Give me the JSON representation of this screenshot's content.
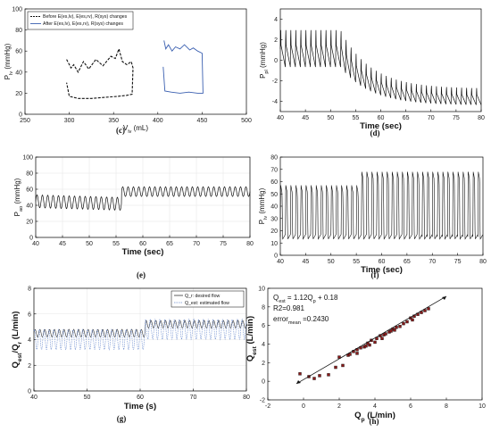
{
  "chart_data": [
    {
      "id": "c",
      "type": "line",
      "caption": "(c)",
      "xlabel": "V",
      "xlabel_sub": "lv",
      "xlabel_unit": " (mL)",
      "ylabel": "P",
      "ylabel_sub": "lv",
      "ylabel_unit": " (mmHg)",
      "xlim": [
        250,
        500
      ],
      "ylim": [
        0,
        100
      ],
      "xticks": [
        250,
        300,
        350,
        400,
        450,
        500
      ],
      "yticks": [
        0,
        20,
        40,
        60,
        80,
        100
      ],
      "legend": [
        "Before E(es,lv), E(es,rv), R(sys) changes",
        "After E(es,lv), E(es,rv), R(sys) changes"
      ],
      "series": [
        {
          "name": "Before E(es,lv), E(es,rv), R(sys) changes",
          "color": "#111111",
          "dash": true,
          "x": [
            297,
            302,
            305,
            310,
            316,
            322,
            330,
            338,
            347,
            352,
            356,
            360,
            365,
            370,
            372,
            371,
            365,
            355,
            340,
            325,
            310,
            300,
            297
          ],
          "y": [
            52,
            44,
            47,
            40,
            50,
            43,
            52,
            46,
            55,
            53,
            62,
            50,
            47,
            50,
            44,
            19,
            18,
            17,
            16,
            15,
            15,
            17,
            30
          ]
        },
        {
          "name": "After E(es,lv), E(es,rv), R(sys) changes",
          "color": "#3a5fb0",
          "dash": false,
          "x": [
            407,
            409,
            412,
            416,
            420,
            425,
            430,
            436,
            440,
            445,
            450,
            451,
            445,
            435,
            425,
            415,
            408,
            406
          ],
          "y": [
            70,
            62,
            66,
            60,
            64,
            62,
            66,
            61,
            63,
            60,
            58,
            20,
            20,
            21,
            20,
            21,
            22,
            45
          ],
          "fill": true
        }
      ]
    },
    {
      "id": "d",
      "type": "line",
      "caption": "(d)",
      "xlabel": "Time (sec)",
      "ylabel": "P",
      "ylabel_sub": "pl",
      "ylabel_unit": " (mmHg)",
      "xlim": [
        40,
        80
      ],
      "ylim": [
        -5,
        5
      ],
      "xticks": [
        40,
        45,
        50,
        55,
        60,
        65,
        70,
        75,
        80
      ],
      "yticks": [
        -4,
        -2,
        0,
        2,
        4
      ],
      "signal": {
        "start": 40,
        "end": 80,
        "period": 1.0,
        "mean_start": 1.1,
        "mean_end": -3.6,
        "transition": [
          52,
          80
        ],
        "swing": 2.2
      }
    },
    {
      "id": "e",
      "type": "line",
      "caption": "(e)",
      "xlabel": "Time (sec)",
      "ylabel": "P",
      "ylabel_sub": "ao",
      "ylabel_unit": " (mmHg)",
      "xlim": [
        40,
        80
      ],
      "ylim": [
        0,
        100
      ],
      "xticks": [
        40,
        45,
        50,
        55,
        60,
        65,
        70,
        75,
        80
      ],
      "yticks": [
        0,
        20,
        40,
        60,
        80,
        100
      ],
      "signal": {
        "start": 40,
        "end": 80,
        "period": 1.0,
        "mean_before": 45,
        "mean_after": 57,
        "step_at": 56,
        "amp_before": 8,
        "amp_after": 6
      }
    },
    {
      "id": "f",
      "type": "line",
      "caption": "(f)",
      "xlabel": "Time (sec)",
      "ylabel": "P",
      "ylabel_sub": "lv",
      "ylabel_unit": " (mmHg)",
      "xlim": [
        40,
        80
      ],
      "ylim": [
        0,
        80
      ],
      "xticks": [
        40,
        45,
        50,
        55,
        60,
        65,
        70,
        75,
        80
      ],
      "yticks": [
        0,
        10,
        20,
        30,
        40,
        50,
        60,
        70,
        80
      ],
      "signal": {
        "start": 40,
        "end": 80,
        "period": 1.0,
        "min": 15,
        "max_before": 57,
        "max_after": 68,
        "step_at": 56
      }
    },
    {
      "id": "g",
      "type": "line",
      "caption": "(g)",
      "xlabel": "Time (s)",
      "ylabel": "Q",
      "ylabel_parts": [
        "Q",
        "est",
        "/Q",
        "r",
        " (L/min)"
      ],
      "xlim": [
        40,
        80
      ],
      "ylim": [
        0,
        8
      ],
      "xticks": [
        40,
        50,
        60,
        70,
        80
      ],
      "yticks": [
        0,
        2,
        4,
        6,
        8
      ],
      "legend": [
        "Q_r: desired flow",
        "Q_est: estimated flow"
      ],
      "series": [
        {
          "name": "Q_r: desired flow",
          "color": "#333333",
          "mean_before": 4.5,
          "mean_after": 5.2,
          "amp": 0.3,
          "step_at": 61
        },
        {
          "name": "Q_est: estimated flow",
          "color": "#6f8fd0",
          "mean_before": 4.0,
          "mean_after": 4.8,
          "amp": 0.8,
          "step_at": 61
        }
      ]
    },
    {
      "id": "h",
      "type": "scatter",
      "caption": "(h)",
      "xlabel": "Q",
      "xlabel_sub": "p",
      "xlabel_unit": " (L/min)",
      "ylabel": "Q",
      "ylabel_sub": "est",
      "ylabel_unit": " (L/min)",
      "xlim": [
        -2,
        10
      ],
      "ylim": [
        -2,
        10
      ],
      "xticks": [
        -2,
        0,
        2,
        4,
        6,
        8,
        10
      ],
      "yticks": [
        -2,
        0,
        2,
        4,
        6,
        8,
        10
      ],
      "annotations": {
        "line1": [
          "Q",
          "est",
          " = 1.12Q",
          "p",
          " + 0.18"
        ],
        "line2": [
          "R",
          "2",
          "=0.981"
        ],
        "line3": [
          "error",
          "mean",
          " =0.2430"
        ]
      },
      "fit": {
        "slope": 1.12,
        "intercept": 0.18,
        "x_from": -0.4,
        "x_to": 8.0
      },
      "points": [
        [
          -0.2,
          0.8
        ],
        [
          0.3,
          0.5
        ],
        [
          0.6,
          0.3
        ],
        [
          0.9,
          0.6
        ],
        [
          1.4,
          0.7
        ],
        [
          1.8,
          1.5
        ],
        [
          2.0,
          2.6
        ],
        [
          2.2,
          1.7
        ],
        [
          2.5,
          2.8
        ],
        [
          2.8,
          3.2
        ],
        [
          3.0,
          3.4
        ],
        [
          3.2,
          3.6
        ],
        [
          3.4,
          3.7
        ],
        [
          3.5,
          3.8
        ],
        [
          3.7,
          3.9
        ],
        [
          3.8,
          4.4
        ],
        [
          4.0,
          4.2
        ],
        [
          4.1,
          4.6
        ],
        [
          4.3,
          4.9
        ],
        [
          4.5,
          5.0
        ],
        [
          4.6,
          5.1
        ],
        [
          4.8,
          5.3
        ],
        [
          5.0,
          5.6
        ],
        [
          5.2,
          5.8
        ],
        [
          5.4,
          5.9
        ],
        [
          5.6,
          6.2
        ],
        [
          5.8,
          6.4
        ],
        [
          6.0,
          6.8
        ],
        [
          6.2,
          7.0
        ],
        [
          6.4,
          7.2
        ],
        [
          6.6,
          7.4
        ],
        [
          6.8,
          7.6
        ],
        [
          7.0,
          7.8
        ],
        [
          3.0,
          3.0
        ],
        [
          2.6,
          2.9
        ],
        [
          4.4,
          4.6
        ],
        [
          5.1,
          5.5
        ],
        [
          6.1,
          6.6
        ],
        [
          3.6,
          4.1
        ],
        [
          4.9,
          5.4
        ]
      ]
    }
  ]
}
